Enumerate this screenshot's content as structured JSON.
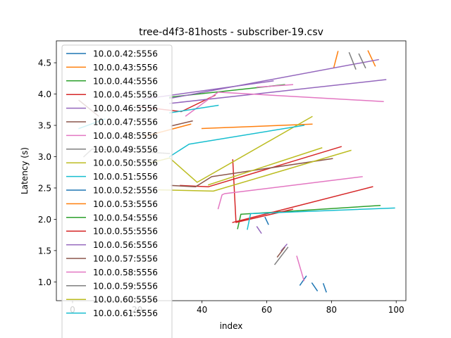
{
  "chart_data": {
    "type": "line",
    "title": "tree-d4f3-81hosts - subscriber-19.csv",
    "xlabel": "index",
    "ylabel": "Latency (s)",
    "xlim": [
      -5,
      103
    ],
    "ylim": [
      0.7,
      4.85
    ],
    "xticks": [
      0,
      20,
      40,
      60,
      80,
      100
    ],
    "yticks": [
      1.0,
      1.5,
      2.0,
      2.5,
      3.0,
      3.5,
      4.0,
      4.5
    ],
    "xtick_labels": [
      "0",
      "20",
      "40",
      "60",
      "80",
      "100"
    ],
    "ytick_labels": [
      "1.0",
      "1.5",
      "2.0",
      "2.5",
      "3.0",
      "3.5",
      "4.0",
      "4.5"
    ],
    "grid": false,
    "legend": "upper-left",
    "series": [
      {
        "name": "10.0.0.42:5556",
        "color": "#1f77b4",
        "segments": [
          [
            [
              74,
              0.98
            ],
            [
              75.6,
              0.86
            ]
          ],
          [
            [
              70.3,
              0.95
            ],
            [
              72.2,
              1.09
            ]
          ],
          [
            [
              77.5,
              0.97
            ],
            [
              78.4,
              0.84
            ]
          ],
          [
            [
              59.5,
              2.03
            ],
            [
              60.5,
              1.92
            ]
          ]
        ]
      },
      {
        "name": "10.0.0.43:5556",
        "color": "#ff7f0e",
        "segments": [
          [
            [
              80.7,
              4.42
            ],
            [
              82,
              4.68
            ]
          ],
          [
            [
              91.3,
              4.69
            ],
            [
              93.5,
              4.45
            ]
          ],
          [
            [
              22,
              3.32
            ],
            [
              36.5,
              3.52
            ]
          ],
          [
            [
              40,
              3.45
            ],
            [
              74,
              3.52
            ]
          ]
        ]
      },
      {
        "name": "10.0.0.44:5556",
        "color": "#2ca02c",
        "segments": [
          [
            [
              30,
              3.95
            ],
            [
              65.5,
              4.15
            ]
          ],
          [
            [
              51,
              1.85
            ],
            [
              52,
              2.08
            ],
            [
              95,
              2.22
            ]
          ]
        ]
      },
      {
        "name": "10.0.0.45:5556",
        "color": "#d62728",
        "segments": [
          [
            [
              20.5,
              3.8
            ],
            [
              33.6,
              3.72
            ],
            [
              44,
              3.98
            ]
          ],
          [
            [
              49.5,
              2.95
            ],
            [
              50.5,
              1.95
            ],
            [
              68,
              2.16
            ]
          ],
          [
            [
              49.5,
              1.95
            ],
            [
              92.7,
              2.52
            ]
          ],
          [
            [
              33.3,
              2.54
            ],
            [
              42,
              2.52
            ],
            [
              83,
              3.16
            ]
          ]
        ]
      },
      {
        "name": "10.0.0.46:5556",
        "color": "#9467bd",
        "segments": [
          [
            [
              30,
              3.93
            ],
            [
              94.5,
              4.55
            ]
          ],
          [
            [
              30,
              3.85
            ],
            [
              96.8,
              4.23
            ]
          ],
          [
            [
              22,
              3.92
            ],
            [
              62,
              4.21
            ]
          ],
          [
            [
              57,
              1.88
            ],
            [
              58.3,
              1.78
            ]
          ],
          [
            [
              64.5,
              1.5
            ],
            [
              66.2,
              1.6
            ]
          ]
        ]
      },
      {
        "name": "10.0.0.47:5556",
        "color": "#8c564b",
        "segments": [
          [
            [
              30.5,
              3.49
            ],
            [
              37,
              3.57
            ]
          ],
          [
            [
              30.5,
              2.54
            ],
            [
              38,
              2.52
            ],
            [
              43,
              2.68
            ],
            [
              80.3,
              2.97
            ]
          ],
          [
            [
              63.3,
              1.4
            ],
            [
              65.5,
              1.55
            ]
          ],
          [
            [
              2,
              3.9
            ],
            [
              8,
              3.65
            ]
          ]
        ]
      },
      {
        "name": "10.0.0.48:5556",
        "color": "#e377c2",
        "segments": [
          [
            [
              35,
              3.65
            ],
            [
              45,
              4.03
            ],
            [
              96,
              3.88
            ]
          ],
          [
            [
              45,
              2.17
            ],
            [
              46.2,
              2.39
            ],
            [
              47,
              2.41
            ],
            [
              89.5,
              2.68
            ]
          ],
          [
            [
              57,
              4.11
            ],
            [
              68,
              4.15
            ]
          ],
          [
            [
              69.3,
              1.41
            ],
            [
              71.5,
              1.02
            ]
          ]
        ]
      },
      {
        "name": "10.0.0.49:5556",
        "color": "#7f7f7f",
        "segments": [
          [
            [
              85.5,
              4.66
            ],
            [
              87.5,
              4.4
            ]
          ],
          [
            [
              88.5,
              4.64
            ],
            [
              90.5,
              4.42
            ]
          ],
          [
            [
              62.5,
              1.28
            ],
            [
              66.5,
              1.55
            ]
          ],
          [
            [
              3.5,
              3.0
            ],
            [
              6,
              3.12
            ],
            [
              30,
              3.05
            ]
          ]
        ]
      },
      {
        "name": "10.0.0.50:5556",
        "color": "#bcbd22",
        "segments": [
          [
            [
              30,
              2.98
            ],
            [
              38.5,
              2.59
            ],
            [
              74,
              3.64
            ]
          ],
          [
            [
              26.5,
              2.47
            ],
            [
              43.5,
              2.45
            ],
            [
              86,
              3.1
            ]
          ],
          [
            [
              42,
              2.55
            ],
            [
              77,
              3.14
            ]
          ],
          [
            [
              24,
              2.9
            ],
            [
              30,
              2.98
            ]
          ]
        ]
      },
      {
        "name": "10.0.0.51:5556",
        "color": "#17becf",
        "segments": [
          [
            [
              30,
              3.7
            ],
            [
              45,
              3.82
            ]
          ],
          [
            [
              30,
              3.0
            ],
            [
              36,
              3.2
            ],
            [
              71.5,
              3.5
            ]
          ],
          [
            [
              54,
              1.84
            ],
            [
              55,
              2.09
            ],
            [
              99.5,
              2.18
            ]
          ],
          [
            [
              2,
              3.45
            ],
            [
              10,
              3.6
            ]
          ]
        ]
      }
    ],
    "legend_entries": [
      {
        "label": "10.0.0.42:5556",
        "color": "#1f77b4"
      },
      {
        "label": "10.0.0.43:5556",
        "color": "#ff7f0e"
      },
      {
        "label": "10.0.0.44:5556",
        "color": "#2ca02c"
      },
      {
        "label": "10.0.0.45:5556",
        "color": "#d62728"
      },
      {
        "label": "10.0.0.46:5556",
        "color": "#9467bd"
      },
      {
        "label": "10.0.0.47:5556",
        "color": "#8c564b"
      },
      {
        "label": "10.0.0.48:5556",
        "color": "#e377c2"
      },
      {
        "label": "10.0.0.49:5556",
        "color": "#7f7f7f"
      },
      {
        "label": "10.0.0.50:5556",
        "color": "#bcbd22"
      },
      {
        "label": "10.0.0.51:5556",
        "color": "#17becf"
      },
      {
        "label": "10.0.0.52:5556",
        "color": "#1f77b4"
      },
      {
        "label": "10.0.0.53:5556",
        "color": "#ff7f0e"
      },
      {
        "label": "10.0.0.54:5556",
        "color": "#2ca02c"
      },
      {
        "label": "10.0.0.55:5556",
        "color": "#d62728"
      },
      {
        "label": "10.0.0.56:5556",
        "color": "#9467bd"
      },
      {
        "label": "10.0.0.57:5556",
        "color": "#8c564b"
      },
      {
        "label": "10.0.0.58:5556",
        "color": "#e377c2"
      },
      {
        "label": "10.0.0.59:5556",
        "color": "#7f7f7f"
      },
      {
        "label": "10.0.0.60:5556",
        "color": "#bcbd22"
      },
      {
        "label": "10.0.0.61:5556",
        "color": "#17becf"
      }
    ]
  }
}
